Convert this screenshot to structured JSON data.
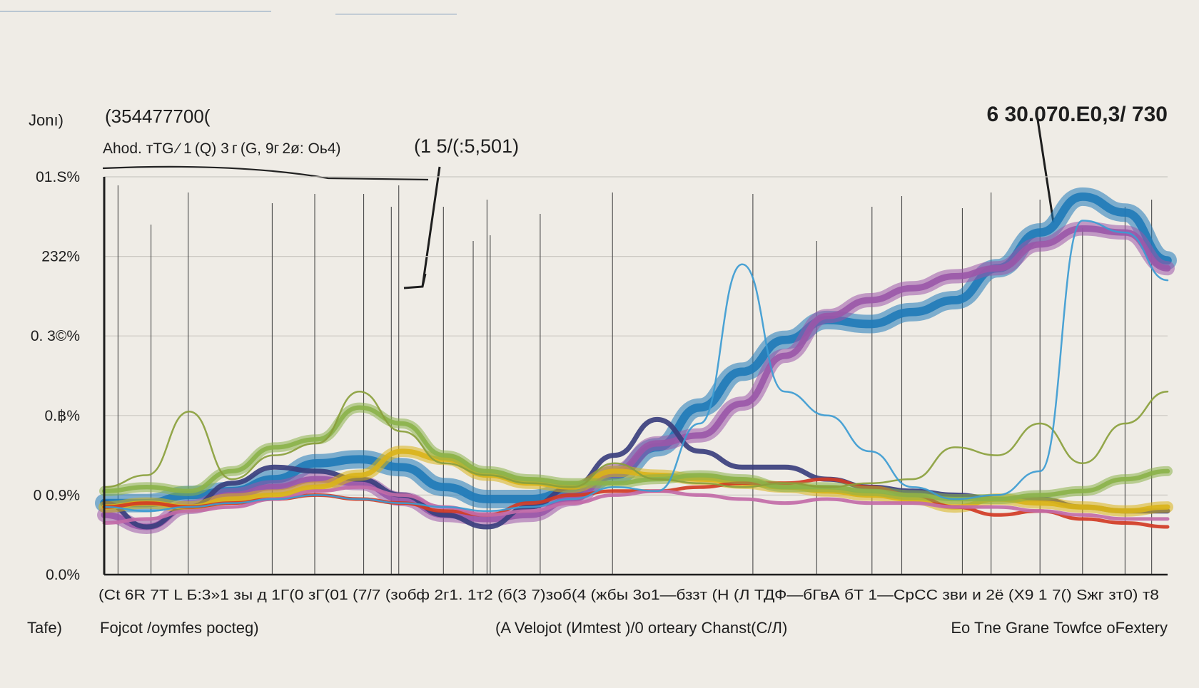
{
  "chart_data": {
    "type": "line",
    "left_label": "Jonı)",
    "title": "(354477700(",
    "subtitle": "Ahod. тТG ⁄ 1 (Q) 3 г (G, 9г 2ø: Oь4)",
    "annotation_center": "(1 5/(:5,501)",
    "annotation_right": "6 30.070.E0,3/ 730",
    "y_tick_labels": [
      "0.0%",
      "0 0.9%",
      "0.฿%",
      "0. 3©%",
      "232%",
      "01.S%"
    ],
    "ylim": [
      0,
      5
    ],
    "x_tick_text": "(Ct 6R 7Т L Б:3»1 зы д 1Г(0 зГ(01 (7/7 (зοбф 2г1. 1т2 (б(3 7)зοб(4 (жбы 3ο1—бззт (Н (Л ТДФ—бГвА бТ 1—СрСС зви и 2ё (Х9 1 7() Sжг зт0) т8",
    "footer": {
      "left_label": "Tafe)",
      "left": "Fojcot /oymfes pocteg)",
      "center": "(A Velojot (Иmtest )/0 orteary Chanst(C/Л)",
      "right": "Eo  Tne Grane Towfce oFextery"
    },
    "x": [
      0,
      0.04,
      0.08,
      0.12,
      0.16,
      0.2,
      0.24,
      0.28,
      0.32,
      0.36,
      0.4,
      0.44,
      0.48,
      0.52,
      0.56,
      0.6,
      0.64,
      0.68,
      0.72,
      0.76,
      0.8,
      0.84,
      0.88,
      0.92,
      0.96,
      1
    ],
    "series": [
      {
        "name": "blue band",
        "color": "#1f7ab8",
        "style": "band",
        "width": 26,
        "values": [
          0.9,
          0.9,
          1.0,
          1.05,
          1.2,
          1.4,
          1.45,
          1.35,
          1.1,
          0.95,
          0.95,
          1.05,
          1.25,
          1.6,
          2.1,
          2.55,
          2.95,
          3.2,
          3.15,
          3.3,
          3.45,
          3.85,
          4.3,
          4.75,
          4.55,
          3.95
        ]
      },
      {
        "name": "purple band",
        "color": "#9a56a8",
        "style": "band",
        "width": 20,
        "values": [
          0.75,
          0.6,
          0.85,
          1.0,
          1.1,
          1.2,
          1.15,
          0.95,
          0.75,
          0.7,
          0.75,
          0.95,
          1.3,
          1.65,
          1.75,
          2.15,
          2.75,
          3.25,
          3.45,
          3.6,
          3.75,
          3.85,
          4.15,
          4.35,
          4.3,
          3.85
        ]
      },
      {
        "name": "navy line",
        "color": "#3b3f7e",
        "style": "line",
        "width": 7,
        "values": [
          0.9,
          0.6,
          0.85,
          1.15,
          1.35,
          1.3,
          1.2,
          1.0,
          0.75,
          0.6,
          0.85,
          1.1,
          1.5,
          1.95,
          1.55,
          1.35,
          1.35,
          1.2,
          1.1,
          1.05,
          1.0,
          0.95,
          0.95,
          0.85,
          0.8,
          0.8
        ]
      },
      {
        "name": "yellow band",
        "color": "#d9b41a",
        "style": "band",
        "width": 16,
        "values": [
          0.85,
          0.9,
          0.85,
          0.95,
          1.0,
          1.1,
          1.25,
          1.55,
          1.45,
          1.25,
          1.15,
          1.1,
          1.3,
          1.25,
          1.2,
          1.15,
          1.1,
          1.05,
          1.0,
          0.95,
          0.85,
          0.95,
          0.9,
          0.85,
          0.8,
          0.85
        ]
      },
      {
        "name": "red line",
        "color": "#d13b25",
        "style": "line",
        "width": 5,
        "values": [
          0.85,
          0.9,
          0.85,
          0.9,
          0.95,
          1.0,
          0.95,
          0.9,
          0.8,
          0.75,
          0.9,
          1.0,
          1.05,
          1.05,
          1.1,
          1.15,
          1.15,
          1.2,
          1.1,
          1.0,
          0.85,
          0.75,
          0.8,
          0.7,
          0.65,
          0.6
        ]
      },
      {
        "name": "pink line",
        "color": "#c26ba8",
        "style": "line",
        "width": 5,
        "values": [
          0.65,
          0.7,
          0.8,
          0.85,
          0.95,
          1.05,
          1.1,
          1.0,
          0.85,
          0.75,
          0.8,
          0.9,
          1.0,
          1.05,
          1.0,
          0.95,
          0.9,
          0.95,
          0.9,
          0.9,
          0.85,
          0.85,
          0.8,
          0.75,
          0.7,
          0.7
        ]
      },
      {
        "name": "green band",
        "color": "#8bb34a",
        "style": "band",
        "width": 14,
        "values": [
          1.05,
          1.1,
          1.05,
          1.3,
          1.6,
          1.7,
          2.1,
          1.9,
          1.5,
          1.3,
          1.2,
          1.15,
          1.15,
          1.2,
          1.25,
          1.2,
          1.1,
          1.1,
          1.05,
          1.0,
          0.95,
          0.95,
          1.0,
          1.05,
          1.2,
          1.3
        ]
      },
      {
        "name": "olive line",
        "color": "#8a9f3c",
        "style": "line",
        "width": 2.5,
        "values": [
          1.1,
          1.25,
          2.05,
          1.2,
          1.5,
          1.65,
          2.3,
          1.8,
          1.4,
          1.25,
          1.15,
          1.1,
          1.4,
          1.2,
          1.15,
          1.1,
          1.15,
          1.1,
          1.15,
          1.2,
          1.6,
          1.5,
          1.9,
          1.4,
          1.9,
          2.3
        ]
      },
      {
        "name": "light blue line",
        "color": "#3c9bd2",
        "style": "line",
        "width": 2.5,
        "values": [
          0.85,
          0.8,
          0.85,
          0.9,
          0.95,
          1.0,
          0.95,
          0.9,
          0.85,
          0.8,
          0.85,
          0.95,
          1.1,
          1.05,
          1.9,
          3.9,
          2.3,
          2.0,
          1.55,
          1.1,
          0.95,
          1.0,
          1.3,
          4.45,
          4.3,
          3.7
        ]
      }
    ]
  }
}
